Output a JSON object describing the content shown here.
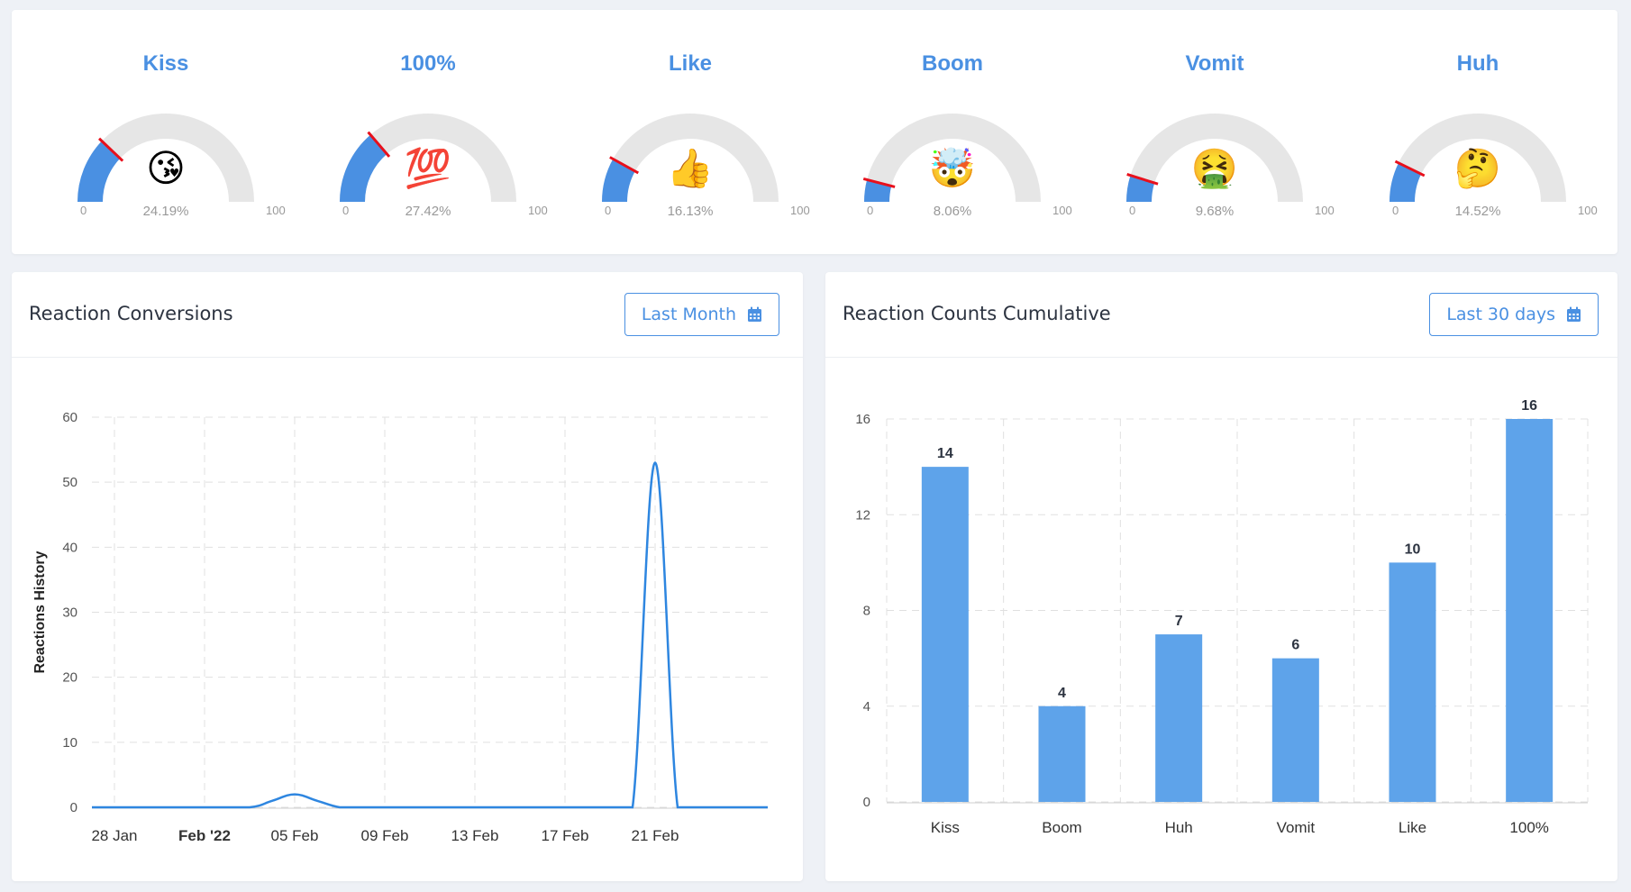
{
  "gauges": [
    {
      "title": "Kiss",
      "emoji": "😘",
      "percent": 24.19,
      "value_label": "24.19%",
      "min": "0",
      "max": "100"
    },
    {
      "title": "100%",
      "emoji": "💯",
      "percent": 27.42,
      "value_label": "27.42%",
      "min": "0",
      "max": "100"
    },
    {
      "title": "Like",
      "emoji": "👍",
      "percent": 16.13,
      "value_label": "16.13%",
      "min": "0",
      "max": "100"
    },
    {
      "title": "Boom",
      "emoji": "🤯",
      "percent": 8.06,
      "value_label": "8.06%",
      "min": "0",
      "max": "100"
    },
    {
      "title": "Vomit",
      "emoji": "🤮",
      "percent": 9.68,
      "value_label": "9.68%",
      "min": "0",
      "max": "100"
    },
    {
      "title": "Huh",
      "emoji": "🤔",
      "percent": 14.52,
      "value_label": "14.52%",
      "min": "0",
      "max": "100"
    }
  ],
  "colors": {
    "accent": "#4a90e2",
    "bar": "#5ea3ea",
    "line": "#2e86e0",
    "needle": "#e8101c",
    "track": "#e6e6e6"
  },
  "conversions": {
    "title": "Reaction Conversions",
    "range_label": "Last Month",
    "range_icon": "calendar-icon"
  },
  "cumulative": {
    "title": "Reaction Counts Cumulative",
    "range_label": "Last 30 days",
    "range_icon": "calendar-icon"
  },
  "chart_data": [
    {
      "type": "line",
      "title": "Reaction Conversions",
      "ylabel": "Reactions History",
      "xlabel": "",
      "ylim": [
        0,
        60
      ],
      "yticks": [
        0,
        10,
        20,
        30,
        40,
        50,
        60
      ],
      "x_tick_labels": [
        "28 Jan",
        "Feb '22",
        "05 Feb",
        "09 Feb",
        "13 Feb",
        "17 Feb",
        "21 Feb"
      ],
      "x_tick_days": [
        0,
        4,
        8,
        12,
        16,
        20,
        24
      ],
      "x_range_days": [
        -1,
        29
      ],
      "series": [
        {
          "name": "Reactions",
          "x_days": [
            -1,
            0,
            4,
            6,
            7,
            8,
            9,
            10,
            11,
            12,
            16,
            20,
            22,
            23,
            24,
            25,
            26,
            29
          ],
          "values": [
            0,
            0,
            0,
            0,
            1,
            2,
            1,
            0,
            0,
            0,
            0,
            0,
            0,
            0,
            53,
            0,
            0,
            0
          ]
        }
      ],
      "grid": true
    },
    {
      "type": "bar",
      "title": "Reaction Counts Cumulative",
      "categories": [
        "Kiss",
        "Boom",
        "Huh",
        "Vomit",
        "Like",
        "100%"
      ],
      "values": [
        14,
        4,
        7,
        6,
        10,
        16
      ],
      "ylim": [
        0,
        16
      ],
      "yticks": [
        0,
        4,
        8,
        12,
        16
      ],
      "xlabel": "",
      "ylabel": "",
      "grid": true
    }
  ]
}
